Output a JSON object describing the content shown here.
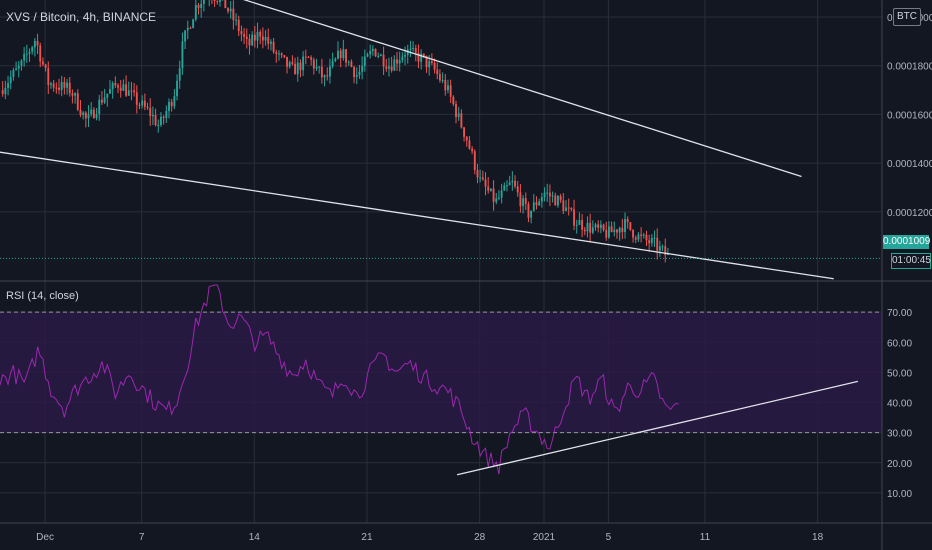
{
  "header": {
    "title": "XVS / Bitcoin, 4h, BINANCE",
    "currency_badge": "BTC",
    "last_price": "0.0001009",
    "countdown": "01:00:45"
  },
  "rsi_panel": {
    "label": "RSI (14, close)"
  },
  "colors": {
    "background": "#131722",
    "grid": "#2a2e39",
    "up_candle": "#26a69a",
    "down_candle": "#ef5350",
    "rsi_line": "#9c27b0",
    "rsi_band": "#2a1a44",
    "trendline": "#e0e3eb"
  },
  "chart_data": [
    {
      "type": "candlestick",
      "title": "XVS / Bitcoin, 4h, BINANCE",
      "xlabel": "",
      "ylabel": "",
      "x_ticks": [
        "Dec",
        "7",
        "14",
        "21",
        "28",
        "2021",
        "5",
        "11",
        "18"
      ],
      "x_tick_days": [
        1,
        7,
        14,
        21,
        28,
        32,
        36,
        42,
        49
      ],
      "x_range_days": [
        -1.8,
        53
      ],
      "ylim": [
        9.2e-05,
        0.000207
      ],
      "y_ticks": [
        "0.0001200",
        "0.0001400",
        "0.0001600",
        "0.0001800",
        "0.0002000"
      ],
      "y_tick_values": [
        0.00012,
        0.00014,
        0.00016,
        0.00018,
        0.0002
      ],
      "grid": true,
      "close_keypoints": [
        [
          -1.8,
          0.00017
        ],
        [
          -0.5,
          0.00018
        ],
        [
          0.4,
          0.000191
        ],
        [
          1.2,
          0.000173
        ],
        [
          2.6,
          0.00017
        ],
        [
          3.6,
          0.000157
        ],
        [
          4.6,
          0.000167
        ],
        [
          5.6,
          0.000173
        ],
        [
          6.6,
          0.000166
        ],
        [
          7.6,
          0.00016
        ],
        [
          8.1,
          0.000155
        ],
        [
          9.0,
          0.000168
        ],
        [
          9.6,
          0.00019
        ],
        [
          10.4,
          0.000205
        ],
        [
          11.2,
          0.00021
        ],
        [
          12.0,
          0.000207
        ],
        [
          12.8,
          0.000198
        ],
        [
          13.6,
          0.000188
        ],
        [
          14.4,
          0.000194
        ],
        [
          15.4,
          0.000184
        ],
        [
          16.4,
          0.000178
        ],
        [
          17.4,
          0.000183
        ],
        [
          18.4,
          0.000174
        ],
        [
          19.4,
          0.000186
        ],
        [
          20.4,
          0.000176
        ],
        [
          21.4,
          0.000187
        ],
        [
          22.4,
          0.00018
        ],
        [
          23.4,
          0.000186
        ],
        [
          24.4,
          0.000183
        ],
        [
          25.2,
          0.000178
        ],
        [
          26.0,
          0.00017
        ],
        [
          27.2,
          0.00015
        ],
        [
          28.0,
          0.000133
        ],
        [
          29.0,
          0.000124
        ],
        [
          30.0,
          0.000132
        ],
        [
          31.0,
          0.000119
        ],
        [
          32.0,
          0.000128
        ],
        [
          33.0,
          0.000124
        ],
        [
          34.0,
          0.000116
        ],
        [
          35.0,
          0.000113
        ],
        [
          36.0,
          0.000111
        ],
        [
          37.0,
          0.000115
        ],
        [
          38.0,
          0.000109
        ],
        [
          38.8,
          0.000107
        ],
        [
          39.8,
          0.000101
        ]
      ],
      "annotations": [
        {
          "type": "trendline",
          "from": [
            -1.8,
            0.0001445
          ],
          "to": [
            50.0,
            9.25e-05
          ]
        },
        {
          "type": "trendline",
          "from": [
            12.0,
            0.00021
          ],
          "to": [
            48.0,
            0.0001345
          ]
        },
        {
          "type": "price_line",
          "value": 0.0001009
        }
      ]
    },
    {
      "type": "line",
      "title": "RSI (14, close)",
      "xlabel": "",
      "ylabel": "",
      "x_range_days": [
        -1.8,
        53
      ],
      "ylim": [
        0,
        80
      ],
      "y_ticks": [
        "10.00",
        "20.00",
        "30.00",
        "40.00",
        "50.00",
        "60.00",
        "70.00"
      ],
      "y_tick_values": [
        10,
        20,
        30,
        40,
        50,
        60,
        70
      ],
      "bands": [
        30,
        70
      ],
      "grid": true,
      "series": [
        {
          "values_keypoints": [
            [
              -1.8,
              47
            ],
            [
              -1.0,
              50
            ],
            [
              -0.2,
              46
            ],
            [
              0.6,
              58
            ],
            [
              1.4,
              44
            ],
            [
              2.2,
              38
            ],
            [
              3.0,
              45
            ],
            [
              3.8,
              49
            ],
            [
              4.6,
              53
            ],
            [
              5.4,
              43
            ],
            [
              6.2,
              50
            ],
            [
              7.0,
              45
            ],
            [
              7.8,
              40
            ],
            [
              8.6,
              37
            ],
            [
              9.2,
              41
            ],
            [
              9.8,
              52
            ],
            [
              10.4,
              66
            ],
            [
              11.0,
              74
            ],
            [
              11.6,
              80
            ],
            [
              12.4,
              66
            ],
            [
              13.2,
              68
            ],
            [
              14.0,
              60
            ],
            [
              14.8,
              62
            ],
            [
              15.6,
              55
            ],
            [
              16.4,
              49
            ],
            [
              17.2,
              54
            ],
            [
              18.0,
              46
            ],
            [
              18.8,
              42
            ],
            [
              19.6,
              49
            ],
            [
              20.4,
              42
            ],
            [
              21.2,
              50
            ],
            [
              22.0,
              56
            ],
            [
              22.8,
              50
            ],
            [
              23.6,
              53
            ],
            [
              24.4,
              49
            ],
            [
              25.2,
              46
            ],
            [
              26.0,
              44
            ],
            [
              26.8,
              38
            ],
            [
              27.6,
              28
            ],
            [
              28.4,
              22
            ],
            [
              29.2,
              19
            ],
            [
              30.0,
              31
            ],
            [
              30.8,
              36
            ],
            [
              31.6,
              30
            ],
            [
              32.4,
              25
            ],
            [
              33.2,
              38
            ],
            [
              34.0,
              48
            ],
            [
              34.8,
              41
            ],
            [
              35.6,
              48
            ],
            [
              36.4,
              36
            ],
            [
              37.2,
              45
            ],
            [
              38.0,
              44
            ],
            [
              38.8,
              48
            ],
            [
              39.6,
              37
            ],
            [
              40.4,
              39
            ]
          ]
        }
      ],
      "annotations": [
        {
          "type": "trendline",
          "from": [
            26.6,
            16
          ],
          "to": [
            51.5,
            47
          ]
        }
      ]
    }
  ]
}
